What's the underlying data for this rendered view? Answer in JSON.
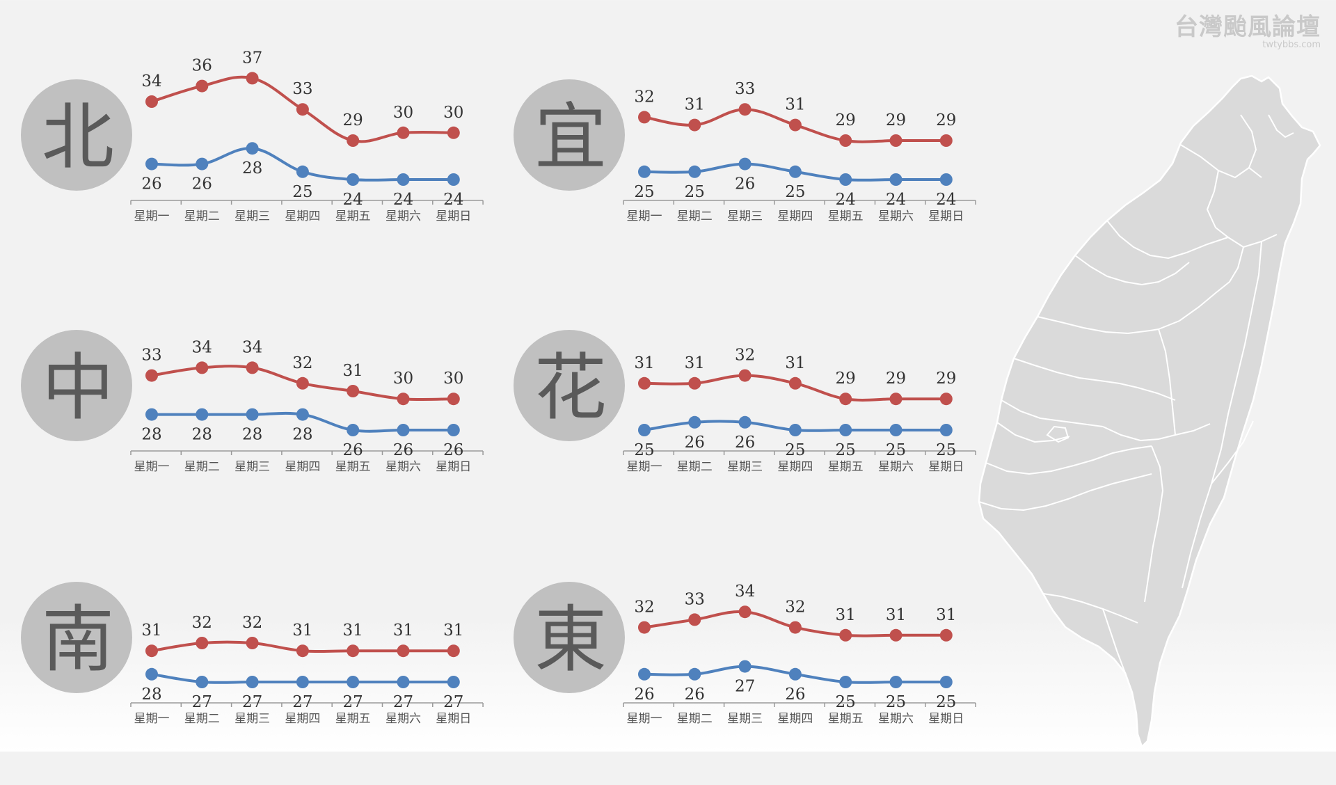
{
  "watermark": {
    "title": "台灣颱風論壇",
    "subtitle": "twtybbs.com"
  },
  "colors": {
    "high": "#c0504d",
    "low": "#4f81bd",
    "circle": "#c0c0c0",
    "map_fill": "#dadada",
    "map_border": "#ffffff"
  },
  "chart_data": [
    {
      "type": "line",
      "region": "北",
      "categories": [
        "星期一",
        "星期二",
        "星期三",
        "星期四",
        "星期五",
        "星期六",
        "星期日"
      ],
      "series": [
        {
          "values": [
            34,
            36,
            37,
            33,
            29,
            30,
            30
          ]
        },
        {
          "values": [
            26,
            26,
            28,
            25,
            24,
            24,
            24
          ]
        }
      ]
    },
    {
      "type": "line",
      "region": "宜",
      "categories": [
        "星期一",
        "星期二",
        "星期三",
        "星期四",
        "星期五",
        "星期六",
        "星期日"
      ],
      "series": [
        {
          "values": [
            32,
            31,
            33,
            31,
            29,
            29,
            29
          ]
        },
        {
          "values": [
            25,
            25,
            26,
            25,
            24,
            24,
            24
          ]
        }
      ]
    },
    {
      "type": "line",
      "region": "中",
      "categories": [
        "星期一",
        "星期二",
        "星期三",
        "星期四",
        "星期五",
        "星期六",
        "星期日"
      ],
      "series": [
        {
          "values": [
            33,
            34,
            34,
            32,
            31,
            30,
            30
          ]
        },
        {
          "values": [
            28,
            28,
            28,
            28,
            26,
            26,
            26
          ]
        }
      ]
    },
    {
      "type": "line",
      "region": "花",
      "categories": [
        "星期一",
        "星期二",
        "星期三",
        "星期四",
        "星期五",
        "星期六",
        "星期日"
      ],
      "series": [
        {
          "values": [
            31,
            31,
            32,
            31,
            29,
            29,
            29
          ]
        },
        {
          "values": [
            25,
            26,
            26,
            25,
            25,
            25,
            25
          ]
        }
      ]
    },
    {
      "type": "line",
      "region": "南",
      "categories": [
        "星期一",
        "星期二",
        "星期三",
        "星期四",
        "星期五",
        "星期六",
        "星期日"
      ],
      "series": [
        {
          "values": [
            31,
            32,
            32,
            31,
            31,
            31,
            31
          ]
        },
        {
          "values": [
            28,
            27,
            27,
            27,
            27,
            27,
            27
          ]
        }
      ]
    },
    {
      "type": "line",
      "region": "東",
      "categories": [
        "星期一",
        "星期二",
        "星期三",
        "星期四",
        "星期五",
        "星期六",
        "星期日"
      ],
      "series": [
        {
          "values": [
            32,
            33,
            34,
            32,
            31,
            31,
            31
          ]
        },
        {
          "values": [
            26,
            26,
            27,
            26,
            25,
            25,
            25
          ]
        }
      ]
    }
  ]
}
